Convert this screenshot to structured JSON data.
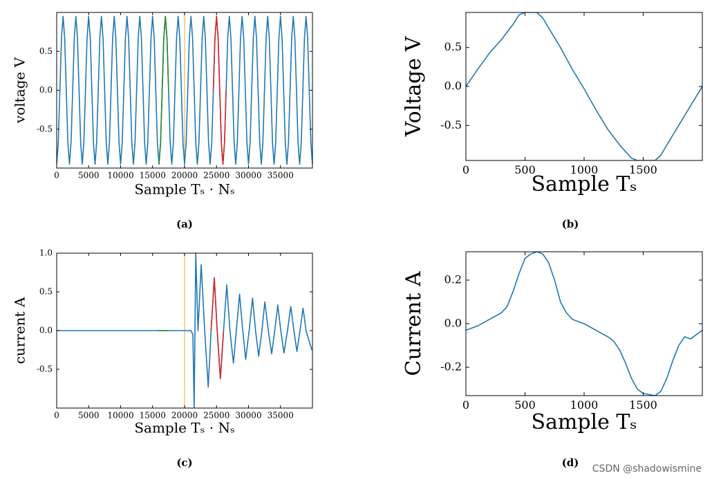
{
  "chart_data": [
    {
      "type": "line",
      "xlabel": "Sample Tₛ · Nₛ",
      "ylabel": "voltage V",
      "caption": "(a)",
      "xlim": [
        0,
        40000
      ],
      "ylim": [
        -1,
        1
      ],
      "xticks": [
        0,
        5000,
        10000,
        15000,
        20000,
        25000,
        30000,
        35000
      ],
      "yticks": [
        -0.5,
        {
          "value": 0,
          "label": "0.0"
        },
        0.5
      ],
      "vlines": [
        {
          "x": 20000,
          "color": "#ffbf80"
        }
      ],
      "series": [
        {
          "color": "#1f77b4",
          "x": [
            0,
            250,
            500,
            750,
            1000,
            1250,
            1500,
            1750,
            2000,
            2250,
            2500,
            2750,
            3000,
            3250,
            3500,
            3750,
            4000,
            4250,
            4500,
            4750,
            5000,
            5250,
            5500,
            5750,
            6000,
            6250,
            6500,
            6750,
            7000,
            7250,
            7500,
            7750,
            8000,
            8250,
            8500,
            8750,
            9000,
            9250,
            9500,
            9750,
            10000,
            10250,
            10500,
            10750,
            11000,
            11250,
            11500,
            11750,
            12000,
            12250,
            12500,
            12750,
            13000,
            13250,
            13500,
            13750,
            14000,
            14250,
            14500,
            14750,
            15000,
            15250,
            15500,
            15750,
            16000,
            16250,
            16500,
            16750,
            17000,
            17250,
            17500,
            17750,
            18000,
            18250,
            18500,
            18750,
            19000,
            19250,
            19500,
            19750,
            20000,
            20250,
            20500,
            20750,
            21000,
            21250,
            21500,
            21750,
            22000,
            22250,
            22500,
            22750,
            23000,
            23250,
            23500,
            23750,
            24000,
            24250,
            24500,
            24750,
            25000,
            25250,
            25500,
            25750,
            26000,
            26250,
            26500,
            26750,
            27000,
            27250,
            27500,
            27750,
            28000,
            28250,
            28500,
            28750,
            29000,
            29250,
            29500,
            29750,
            30000,
            30250,
            30500,
            30750,
            31000,
            31250,
            31500,
            31750,
            32000,
            32250,
            32500,
            32750,
            33000,
            33250,
            33500,
            33750,
            34000,
            34250,
            34500,
            34750,
            35000,
            35250,
            35500,
            35750,
            36000,
            36250,
            36500,
            36750,
            37000,
            37250,
            37500,
            37750,
            38000,
            38250,
            38500,
            38750,
            39000,
            39250,
            39500,
            39750,
            40000
          ],
          "values": [
            -0.95,
            -0.67,
            0,
            0.67,
            0.95,
            0.67,
            0,
            -0.67,
            -0.95,
            -0.67,
            0,
            0.67,
            0.95,
            0.67,
            0,
            -0.67,
            -0.95,
            -0.67,
            0,
            0.67,
            0.95,
            0.67,
            0,
            -0.67,
            -0.95,
            -0.67,
            0,
            0.67,
            0.95,
            0.67,
            0,
            -0.67,
            -0.95,
            -0.67,
            0,
            0.67,
            0.95,
            0.67,
            0,
            -0.67,
            -0.95,
            -0.67,
            0,
            0.67,
            0.95,
            0.67,
            0,
            -0.67,
            -0.95,
            -0.67,
            0,
            0.67,
            0.95,
            0.67,
            0,
            -0.67,
            -0.95,
            -0.67,
            0,
            0.67,
            0.95,
            0.67,
            0,
            -0.67,
            -0.95,
            -0.67,
            0,
            0.67,
            0.95,
            0.67,
            0,
            -0.67,
            -0.95,
            -0.67,
            0,
            0.67,
            0.95,
            0.67,
            0,
            -0.67,
            -0.95,
            -0.67,
            0,
            0.67,
            0.95,
            0.67,
            0,
            -0.67,
            -0.95,
            -0.67,
            0,
            0.67,
            0.95,
            0.67,
            0,
            -0.67,
            -0.95,
            -0.67,
            0,
            0.67,
            0.95,
            0.67,
            0,
            -0.67,
            -0.95,
            -0.67,
            0,
            0.67,
            0.95,
            0.67,
            0,
            -0.67,
            -0.95,
            -0.67,
            0,
            0.67,
            0.95,
            0.67,
            0,
            -0.67,
            -0.95,
            -0.67,
            0,
            0.67,
            0.95,
            0.67,
            0,
            -0.67,
            -0.95,
            -0.67,
            0,
            0.67,
            0.95,
            0.67,
            0,
            -0.67,
            -0.95,
            -0.67,
            0,
            0.67,
            0.95,
            0.67,
            0,
            -0.67,
            -0.95,
            -0.67,
            0,
            0.67,
            0.95,
            0.67,
            0,
            -0.67,
            -0.95,
            -0.67,
            0,
            0.67,
            0.95,
            0.67,
            0,
            -0.67,
            -0.95
          ]
        },
        {
          "color": "#2a8a2a",
          "x": [
            16000,
            16250,
            16500,
            16750,
            17000,
            17250,
            17500
          ],
          "values": [
            -0.95,
            -0.67,
            0,
            0.67,
            0.95,
            0.67,
            0
          ]
        },
        {
          "color": "#d62728",
          "x": [
            24500,
            24750,
            25000,
            25250,
            25500,
            25750,
            26000,
            26250,
            26500
          ],
          "values": [
            0,
            0.67,
            0.95,
            0.67,
            0,
            -0.67,
            -0.95,
            -0.67,
            0
          ]
        }
      ]
    },
    {
      "type": "line",
      "xlabel": "Sample Tₛ",
      "ylabel": "Voltage V",
      "caption": "(b)",
      "xlim": [
        0,
        2000
      ],
      "ylim": [
        -0.95,
        0.95
      ],
      "xticks": [
        0,
        500,
        1000,
        1500
      ],
      "yticks": [
        -0.5,
        {
          "value": 0,
          "label": "0.0"
        },
        0.5
      ],
      "series": [
        {
          "color": "#1f77b4",
          "x": [
            0,
            100,
            200,
            300,
            400,
            450,
            500,
            600,
            650,
            700,
            800,
            900,
            1000,
            1100,
            1200,
            1300,
            1400,
            1450,
            1600,
            1650,
            1700,
            1800,
            1900,
            2000
          ],
          "values": [
            0,
            0.22,
            0.43,
            0.6,
            0.8,
            0.92,
            0.95,
            0.95,
            0.88,
            0.75,
            0.5,
            0.22,
            -0.03,
            -0.3,
            -0.55,
            -0.75,
            -0.92,
            -0.95,
            -0.95,
            -0.88,
            -0.75,
            -0.5,
            -0.25,
            0
          ]
        }
      ]
    },
    {
      "type": "line",
      "xlabel": "Sample Tₛ · Nₛ",
      "ylabel": "current A",
      "caption": "(c)",
      "xlim": [
        0,
        40000
      ],
      "ylim": [
        -1,
        1
      ],
      "xticks": [
        0,
        5000,
        10000,
        15000,
        20000,
        25000,
        30000,
        35000
      ],
      "yticks": [
        -0.5,
        {
          "value": 0,
          "label": "0.0"
        },
        0.5,
        {
          "value": 1,
          "label": "1.0"
        }
      ],
      "vlines": [
        {
          "x": 20000,
          "color": "#ffbf80"
        }
      ],
      "series": [
        {
          "color": "#1f77b4",
          "x": [
            0,
            21000,
            21300,
            21500,
            21750,
            22100,
            22600,
            23150,
            23700,
            24150,
            24650,
            25100,
            25600,
            26100,
            26600,
            27100,
            27640,
            28100,
            28600,
            29100,
            29560,
            30100,
            30630,
            31100,
            31590,
            32100,
            32550,
            33100,
            33620,
            34100,
            34580,
            35050,
            35540,
            36100,
            36610,
            37100,
            37570,
            38050,
            38530,
            39000,
            39900
          ],
          "values": [
            0,
            0,
            -0.05,
            -1,
            1,
            0,
            0.85,
            0,
            -0.73,
            0,
            0.68,
            0,
            -0.62,
            0,
            0.59,
            0,
            -0.42,
            0,
            0.47,
            0,
            -0.37,
            0,
            0.42,
            0,
            -0.33,
            0,
            0.37,
            0,
            -0.3,
            0,
            0.33,
            0,
            -0.29,
            0,
            0.31,
            0,
            -0.27,
            0,
            0.29,
            0,
            -0.25
          ]
        },
        {
          "color": "#2a8a2a",
          "x": [
            15900,
            17500
          ],
          "values": [
            0,
            0
          ]
        },
        {
          "color": "#d62728",
          "x": [
            24150,
            24650,
            25100,
            25600,
            26100
          ],
          "values": [
            0,
            0.68,
            0,
            -0.62,
            0
          ]
        }
      ]
    },
    {
      "type": "line",
      "xlabel": "Sample Tₛ",
      "ylabel": "Current A",
      "caption": "(d)",
      "xlim": [
        0,
        2000
      ],
      "ylim": [
        -0.33,
        0.33
      ],
      "xticks": [
        0,
        500,
        1000,
        1500
      ],
      "yticks": [
        -0.2,
        {
          "value": 0,
          "label": "0.0"
        },
        0.2
      ],
      "series": [
        {
          "color": "#1f77b4",
          "x": [
            0,
            100,
            200,
            300,
            350,
            400,
            450,
            500,
            550,
            600,
            650,
            700,
            750,
            800,
            850,
            900,
            1000,
            1100,
            1200,
            1250,
            1300,
            1350,
            1400,
            1450,
            1500,
            1600,
            1650,
            1700,
            1750,
            1800,
            1850,
            1900,
            1950,
            2000
          ],
          "values": [
            -0.03,
            -0.01,
            0.02,
            0.05,
            0.08,
            0.15,
            0.23,
            0.3,
            0.32,
            0.33,
            0.32,
            0.28,
            0.2,
            0.1,
            0.05,
            0.02,
            0,
            -0.03,
            -0.06,
            -0.08,
            -0.12,
            -0.18,
            -0.25,
            -0.3,
            -0.32,
            -0.33,
            -0.31,
            -0.25,
            -0.17,
            -0.1,
            -0.06,
            -0.07,
            -0.05,
            -0.03
          ]
        }
      ]
    }
  ],
  "watermark": "CSDN @shadowismine"
}
